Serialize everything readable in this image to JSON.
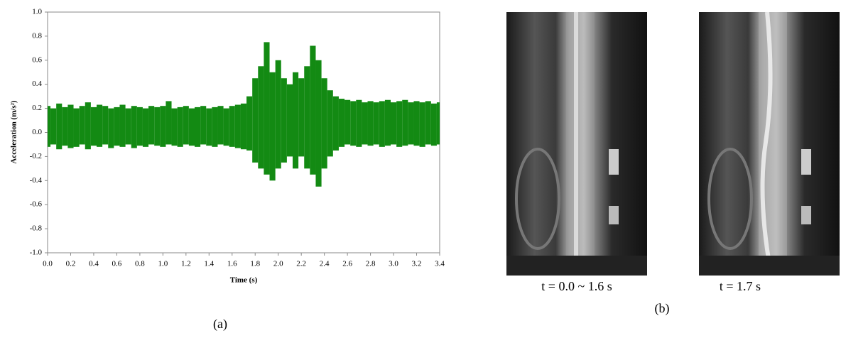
{
  "chart_data": {
    "type": "band",
    "xlabel": "Time (s)",
    "ylabel": "Acceleration (m/s²)",
    "color": "#138a13",
    "x": [
      0,
      0.05,
      0.1,
      0.15,
      0.2,
      0.25,
      0.3,
      0.35,
      0.4,
      0.45,
      0.5,
      0.55,
      0.6,
      0.65,
      0.7,
      0.75,
      0.8,
      0.85,
      0.9,
      0.95,
      1.0,
      1.05,
      1.1,
      1.15,
      1.2,
      1.25,
      1.3,
      1.35,
      1.4,
      1.45,
      1.5,
      1.55,
      1.6,
      1.65,
      1.7,
      1.75,
      1.8,
      1.85,
      1.9,
      1.95,
      2.0,
      2.05,
      2.1,
      2.15,
      2.2,
      2.25,
      2.3,
      2.35,
      2.4,
      2.45,
      2.5,
      2.55,
      2.6,
      2.65,
      2.7,
      2.75,
      2.8,
      2.85,
      2.9,
      2.95,
      3.0,
      3.05,
      3.1,
      3.15,
      3.2,
      3.25,
      3.3,
      3.35,
      3.4
    ],
    "high": [
      0.22,
      0.2,
      0.24,
      0.21,
      0.23,
      0.2,
      0.22,
      0.25,
      0.21,
      0.23,
      0.22,
      0.2,
      0.21,
      0.23,
      0.2,
      0.22,
      0.21,
      0.2,
      0.22,
      0.21,
      0.22,
      0.26,
      0.2,
      0.21,
      0.22,
      0.2,
      0.21,
      0.22,
      0.2,
      0.21,
      0.22,
      0.2,
      0.22,
      0.23,
      0.24,
      0.3,
      0.45,
      0.55,
      0.75,
      0.5,
      0.6,
      0.45,
      0.4,
      0.5,
      0.45,
      0.55,
      0.72,
      0.6,
      0.45,
      0.35,
      0.3,
      0.28,
      0.27,
      0.26,
      0.27,
      0.25,
      0.26,
      0.25,
      0.26,
      0.27,
      0.25,
      0.26,
      0.27,
      0.25,
      0.26,
      0.25,
      0.26,
      0.24,
      0.25
    ],
    "low": [
      -0.12,
      -0.1,
      -0.14,
      -0.11,
      -0.13,
      -0.12,
      -0.1,
      -0.14,
      -0.11,
      -0.12,
      -0.1,
      -0.13,
      -0.11,
      -0.12,
      -0.1,
      -0.13,
      -0.11,
      -0.12,
      -0.1,
      -0.11,
      -0.12,
      -0.1,
      -0.11,
      -0.12,
      -0.1,
      -0.11,
      -0.12,
      -0.1,
      -0.11,
      -0.12,
      -0.1,
      -0.11,
      -0.12,
      -0.13,
      -0.14,
      -0.15,
      -0.25,
      -0.3,
      -0.35,
      -0.4,
      -0.3,
      -0.25,
      -0.2,
      -0.3,
      -0.2,
      -0.3,
      -0.35,
      -0.45,
      -0.3,
      -0.2,
      -0.15,
      -0.12,
      -0.1,
      -0.11,
      -0.12,
      -0.1,
      -0.11,
      -0.1,
      -0.12,
      -0.11,
      -0.1,
      -0.12,
      -0.11,
      -0.1,
      -0.11,
      -0.12,
      -0.1,
      -0.11,
      -0.1
    ],
    "xlim": [
      0,
      3.4
    ],
    "xticks": [
      {
        "value": 0,
        "label": "0.0"
      },
      0.2,
      0.4,
      0.6,
      0.8,
      {
        "value": 1,
        "label": "1.0"
      },
      1.2,
      1.4,
      1.6,
      1.8,
      {
        "value": 2,
        "label": "2.0"
      },
      2.2,
      2.4,
      2.6,
      2.8,
      {
        "value": 3,
        "label": "3.0"
      },
      3.2,
      3.4
    ],
    "ylim": [
      -1,
      1
    ],
    "yticks": [
      {
        "value": 1,
        "label": "1.0"
      },
      0.8,
      0.6,
      0.4,
      0.2,
      {
        "value": 0,
        "label": "0.0"
      },
      -0.2,
      -0.4,
      -0.6,
      -0.8,
      {
        "value": -1,
        "label": "-1.0"
      }
    ],
    "panel_label": "(a)"
  },
  "photos": {
    "captions": [
      "t = 0.0 ~ 1.6 s",
      "t = 1.7 s"
    ],
    "panel_label": "(b)"
  }
}
